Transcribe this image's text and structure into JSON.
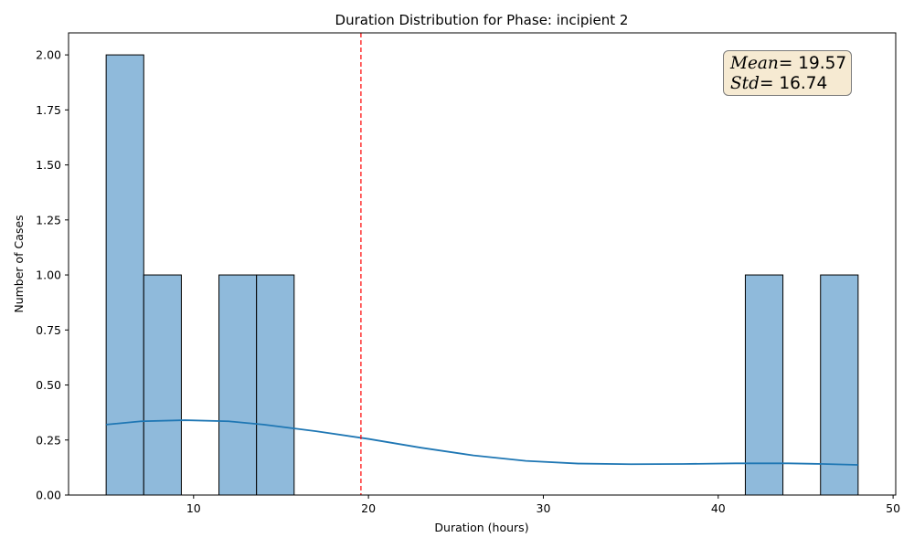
{
  "chart_data": {
    "type": "bar",
    "title": "Duration Distribution for Phase: incipient 2",
    "xlabel": "Duration (hours)",
    "ylabel": "Number of Cases",
    "xlim": [
      2.85,
      50.15
    ],
    "ylim": [
      0,
      2.1
    ],
    "xticks": [
      10,
      20,
      30,
      40,
      50
    ],
    "yticks": [
      0.0,
      0.25,
      0.5,
      0.75,
      1.0,
      1.25,
      1.5,
      1.75,
      2.0
    ],
    "yticks_labels": [
      "0.00",
      "0.25",
      "0.50",
      "0.75",
      "1.00",
      "1.25",
      "1.50",
      "1.75",
      "2.00"
    ],
    "bins": [
      {
        "x0": 5.0,
        "x1": 7.15,
        "count": 2
      },
      {
        "x0": 7.15,
        "x1": 9.3,
        "count": 1
      },
      {
        "x0": 11.45,
        "x1": 13.6,
        "count": 1
      },
      {
        "x0": 13.6,
        "x1": 15.75,
        "count": 1
      },
      {
        "x0": 41.55,
        "x1": 43.7,
        "count": 1
      },
      {
        "x0": 45.85,
        "x1": 48.0,
        "count": 1
      }
    ],
    "kde": {
      "x": [
        5,
        7,
        9.5,
        12,
        14,
        17,
        20,
        23,
        26,
        29,
        32,
        35,
        38,
        41,
        44,
        46,
        48
      ],
      "y": [
        0.32,
        0.335,
        0.34,
        0.335,
        0.32,
        0.29,
        0.255,
        0.215,
        0.18,
        0.155,
        0.143,
        0.14,
        0.141,
        0.144,
        0.144,
        0.141,
        0.137
      ]
    },
    "mean_line": 19.57,
    "annotation": {
      "mean_label": "Mean",
      "mean_value": "= 19.57",
      "std_label": "Std",
      "std_value": "= 16.74"
    },
    "colors": {
      "bar_fill": "#8fbadb",
      "bar_edge": "#000000",
      "kde": "#1f77b4",
      "mean_line": "#ff0000",
      "stat_box_bg": "#f6ead2"
    },
    "grid": false
  }
}
